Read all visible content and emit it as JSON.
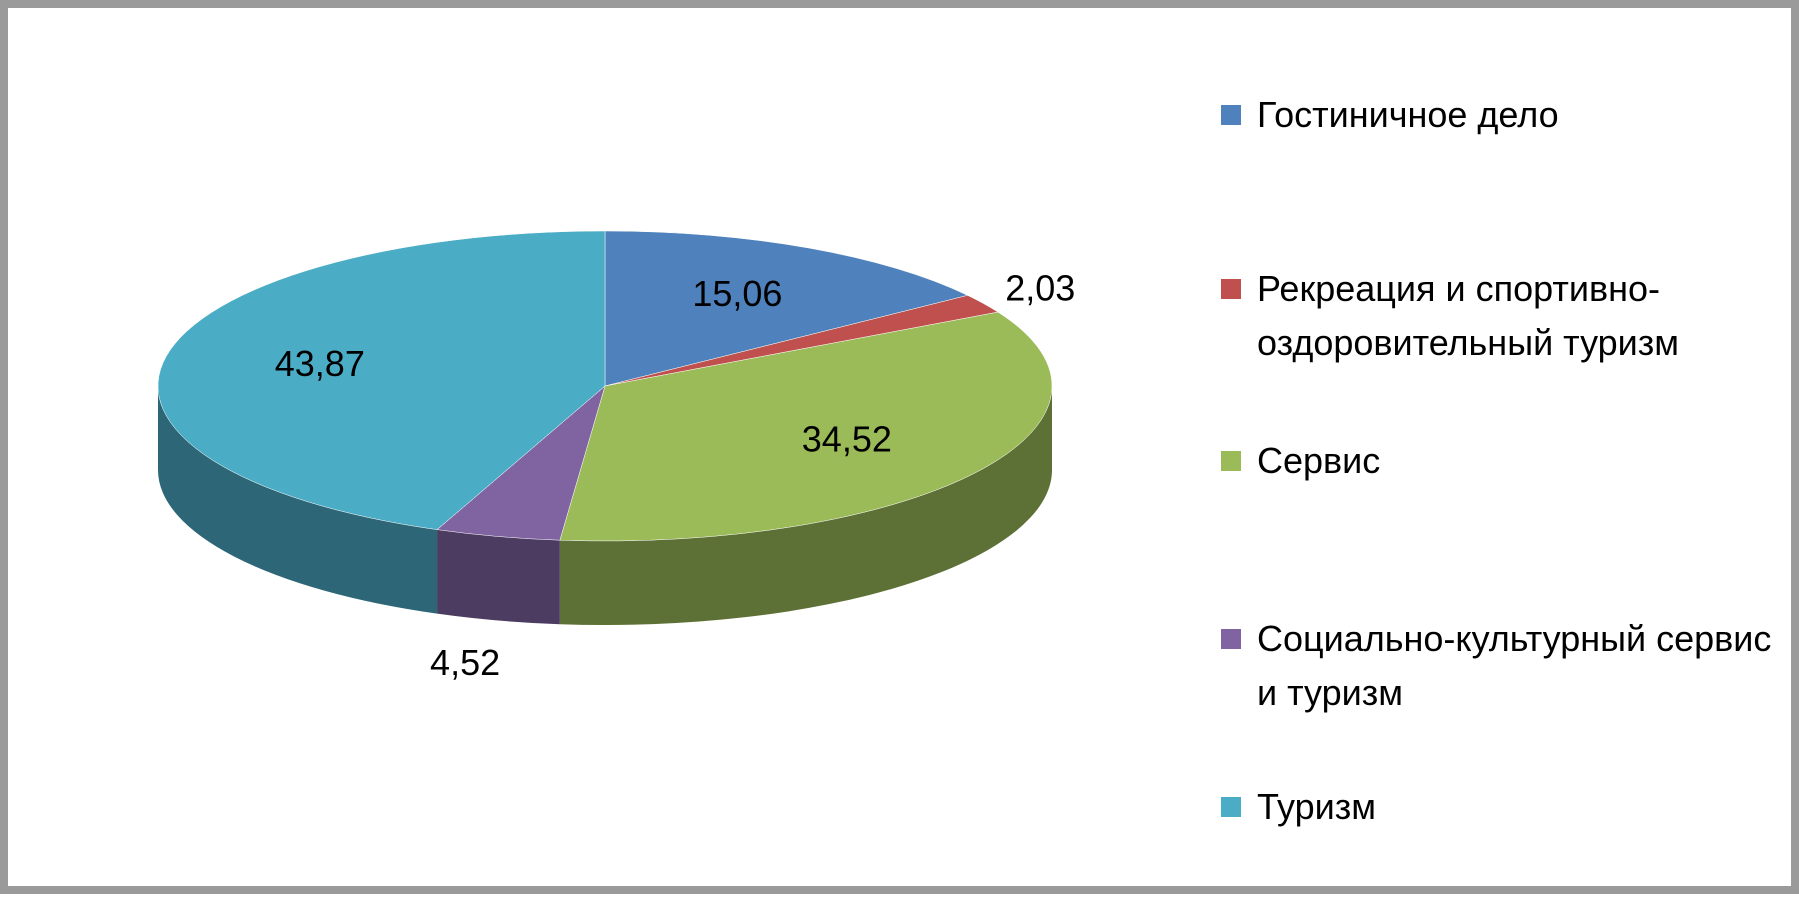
{
  "chart_data": {
    "type": "pie3d",
    "categories": [
      "Гостиничное дело",
      "Рекреация и спортивно-оздоровительный туризм",
      "Сервис",
      "Социально-культурный сервис и туризм",
      "Туризм"
    ],
    "values": [
      15.06,
      2.03,
      34.52,
      4.52,
      43.87
    ],
    "value_labels": [
      "15,06",
      "2,03",
      "34,52",
      "4,52",
      "43,87"
    ],
    "colors": [
      "#4f81bd",
      "#c0504d",
      "#9bbb59",
      "#8064a2",
      "#4bacc6"
    ],
    "legend": "right"
  }
}
